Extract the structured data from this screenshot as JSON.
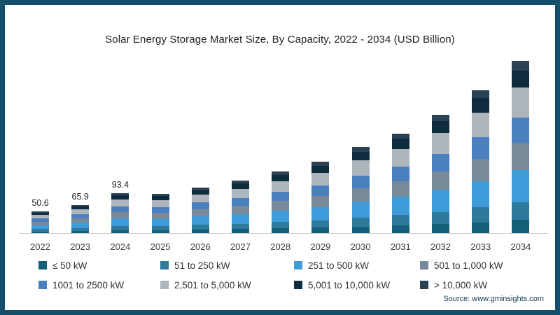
{
  "title": "Solar Energy Storage Market Size, By Capacity, 2022 - 2034 (USD Billion)",
  "source": "Source: www.gminsights.com",
  "frame": {
    "border_color": "#15506A",
    "background": "#ffffff",
    "axis_line_color": "#cccccc"
  },
  "chart_data": {
    "type": "bar",
    "stacked": true,
    "grid": false,
    "legend_position": "bottom",
    "ylim": [
      0,
      420
    ],
    "categories": [
      "2022",
      "2023",
      "2024",
      "2025",
      "2026",
      "2027",
      "2028",
      "2029",
      "2030",
      "2031",
      "2032",
      "2033",
      "2034"
    ],
    "totals": [
      50.6,
      65.9,
      93.4,
      91.2,
      106.3,
      122.5,
      143.8,
      166.4,
      201.2,
      233.5,
      276.8,
      334.6,
      402.9
    ],
    "value_labels": [
      "50.6",
      "65.9",
      "93.4",
      null,
      null,
      null,
      null,
      null,
      null,
      null,
      null,
      null,
      null
    ],
    "series": [
      {
        "name": "≤ 50 kW",
        "color": "#135E78",
        "values": [
          3.8,
          4.9,
          7.0,
          6.8,
          8.0,
          9.2,
          10.8,
          12.5,
          15.1,
          17.5,
          20.8,
          25.1,
          30.2
        ]
      },
      {
        "name": "51 to 250 kW",
        "color": "#2D7A9B",
        "values": [
          5.3,
          6.9,
          9.8,
          9.6,
          11.2,
          12.9,
          15.1,
          17.5,
          21.1,
          24.5,
          29.1,
          35.1,
          42.3
        ]
      },
      {
        "name": "251 to 500 kW",
        "color": "#3E9CDB",
        "values": [
          9.4,
          12.2,
          17.3,
          16.9,
          19.7,
          22.7,
          26.6,
          30.8,
          37.2,
          43.2,
          51.2,
          61.9,
          74.5
        ]
      },
      {
        "name": "501 to 1,000 kW",
        "color": "#78899A",
        "values": [
          7.8,
          10.2,
          14.5,
          14.1,
          16.5,
          19.0,
          22.3,
          25.8,
          31.2,
          36.2,
          42.9,
          51.9,
          62.4
        ]
      },
      {
        "name": "1001 to 2500 kW",
        "color": "#4A80BE",
        "values": [
          7.6,
          9.9,
          14.0,
          13.7,
          15.9,
          18.4,
          21.6,
          25.0,
          30.2,
          35.0,
          41.5,
          50.2,
          60.4
        ]
      },
      {
        "name": "2,501 to 5,000 kW",
        "color": "#ADB5BD",
        "values": [
          8.9,
          11.5,
          16.3,
          16.0,
          18.6,
          21.4,
          25.2,
          29.1,
          35.2,
          40.9,
          48.4,
          58.6,
          70.5
        ]
      },
      {
        "name": "5,001 to 10,000 kW",
        "color": "#0F2C3F",
        "values": [
          5.1,
          6.6,
          9.3,
          9.1,
          10.6,
          12.3,
          14.4,
          16.6,
          20.1,
          23.4,
          27.7,
          33.5,
          40.3
        ]
      },
      {
        "name": "> 10,000 kW",
        "color": "#2B4255",
        "values": [
          2.8,
          3.6,
          5.1,
          5.0,
          5.8,
          6.7,
          7.9,
          9.2,
          11.1,
          12.8,
          15.2,
          18.4,
          22.2
        ]
      }
    ]
  },
  "legend": {
    "items": [
      {
        "label": "≤ 50 kW",
        "color": "#135E78"
      },
      {
        "label": "51 to 250 kW",
        "color": "#2D7A9B"
      },
      {
        "label": "251 to 500 kW",
        "color": "#3E9CDB"
      },
      {
        "label": "501 to 1,000 kW",
        "color": "#78899A"
      },
      {
        "label": "1001 to 2500 kW",
        "color": "#4A80BE"
      },
      {
        "label": "2,501 to 5,000 kW",
        "color": "#ADB5BD"
      },
      {
        "label": "5,001 to 10,000 kW",
        "color": "#0F2C3F"
      },
      {
        "label": "> 10,000 kW",
        "color": "#2B4255"
      }
    ]
  }
}
